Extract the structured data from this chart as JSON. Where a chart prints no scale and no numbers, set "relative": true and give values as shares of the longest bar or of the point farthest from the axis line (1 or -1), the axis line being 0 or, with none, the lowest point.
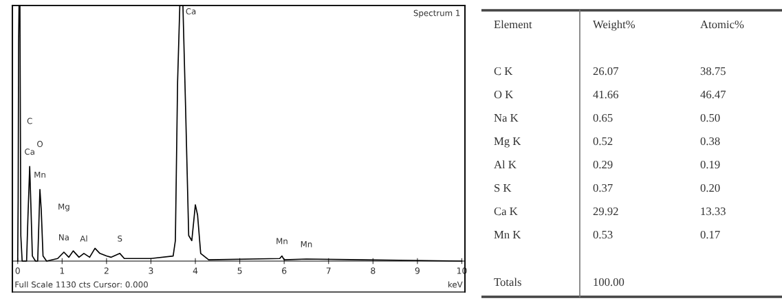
{
  "chart_data": [
    {
      "type": "line",
      "title": "Spectrum 1",
      "xlabel": "keV",
      "relative": true,
      "xlim": [
        -0.12,
        10.07
      ],
      "xticks": [
        0,
        1,
        2,
        3,
        4,
        5,
        6,
        7,
        8,
        9,
        10
      ],
      "grid": false,
      "series": [
        {
          "color": "#000000",
          "x": [
            0.0,
            0.01,
            0.02,
            0.03,
            0.05,
            0.07,
            0.1,
            0.2,
            0.23,
            0.27,
            0.3,
            0.33,
            0.4,
            0.45,
            0.5,
            0.53,
            0.57,
            0.65,
            0.9,
            1.04,
            1.15,
            1.25,
            1.38,
            1.49,
            1.62,
            1.74,
            1.85,
            2.0,
            2.1,
            2.3,
            2.4,
            3.0,
            3.5,
            3.55,
            3.6,
            3.65,
            3.72,
            3.78,
            3.85,
            3.92,
            4.0,
            4.05,
            4.12,
            4.3,
            5.9,
            5.95,
            6.0,
            6.5,
            10.0
          ],
          "values": [
            0,
            0.24,
            0.85,
            1,
            1,
            0.1,
            0,
            0,
            0.17,
            0.37,
            0.2,
            0.02,
            0,
            0,
            0.28,
            0.2,
            0.02,
            0,
            0.01,
            0.035,
            0.015,
            0.04,
            0.015,
            0.03,
            0.015,
            0.05,
            0.03,
            0.02,
            0.015,
            0.03,
            0.01,
            0.01,
            0.02,
            0.08,
            0.7,
            1,
            1,
            0.6,
            0.1,
            0.08,
            0.22,
            0.18,
            0.03,
            0.005,
            0.01,
            0.02,
            0.005,
            0.008,
            0
          ]
        }
      ],
      "annotations": [
        "Full Scale 1130 cts Cursor: 0.000",
        {
          "text": "Ca",
          "x": 0.27,
          "y": 0.37
        },
        "C",
        {
          "text": "Mn",
          "x": 0.5,
          "y": 0.28
        },
        "O",
        {
          "text": "Na",
          "x": 1.04,
          "y": 0.035
        },
        "Mg",
        {
          "text": "Al",
          "x": 1.49,
          "y": 0.03
        },
        {
          "text": "S",
          "x": 2.3,
          "y": 0.03
        },
        {
          "text": "Ca",
          "x": 3.65,
          "y": 1
        },
        {
          "text": "Mn",
          "x": 5.95,
          "y": 0.02
        },
        {
          "text": "Mn",
          "x": 6.5,
          "y": 0.008
        }
      ]
    },
    {
      "type": "other",
      "categories": [
        "Element",
        "Weight%",
        "Atomic%"
      ],
      "y_categories": [
        "C K",
        "O K",
        "Na K",
        "Mg K",
        "Al K",
        "S K",
        "Ca K",
        "Mn K",
        "Totals"
      ],
      "cell_labels": [
        [
          "26.07",
          "38.75"
        ],
        [
          "41.66",
          "46.47"
        ],
        [
          "0.65",
          "0.50"
        ],
        [
          "0.52",
          "0.38"
        ],
        [
          "0.29",
          "0.19"
        ],
        [
          "0.37",
          "0.20"
        ],
        [
          "29.92",
          "13.33"
        ],
        [
          "0.53",
          "0.17"
        ],
        [
          "100.00",
          null
        ]
      ]
    }
  ]
}
